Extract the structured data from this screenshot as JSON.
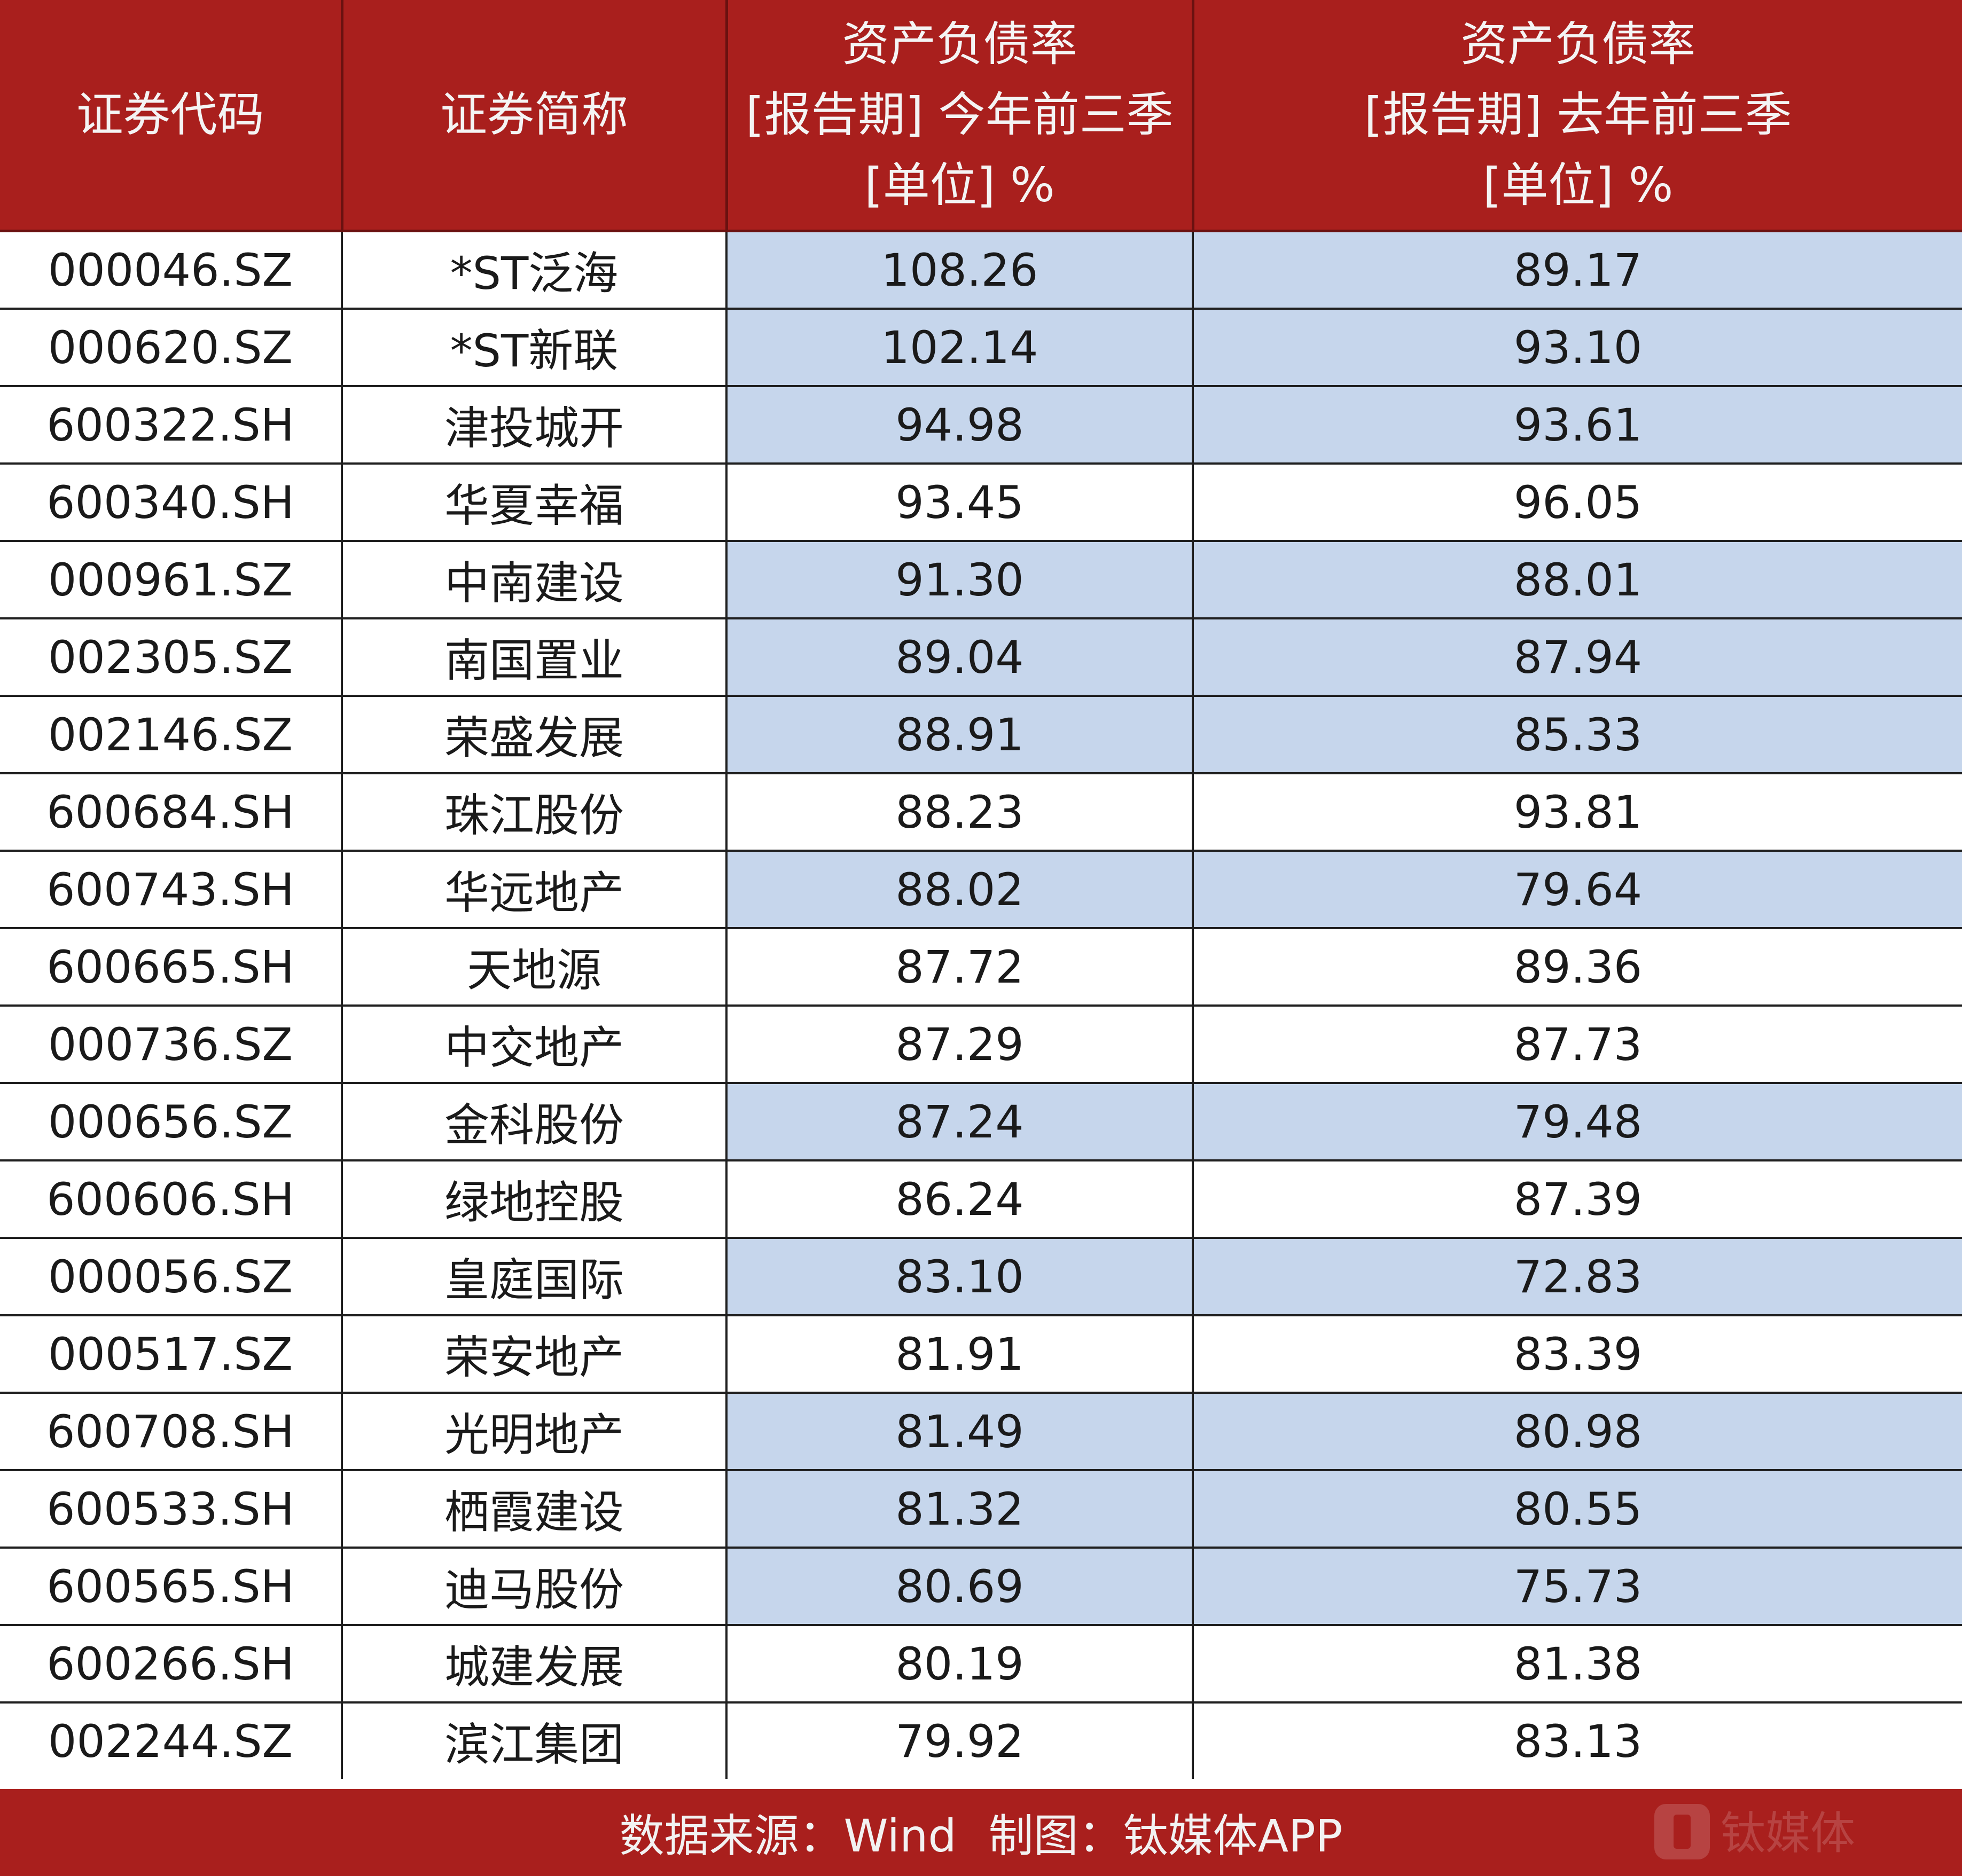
{
  "chart_data": {
    "type": "table",
    "columns": [
      [
        "证券代码"
      ],
      [
        "证券简称"
      ],
      [
        "资产负债率",
        "[报告期] 今年前三季",
        "[单位] %"
      ],
      [
        "资产负债率",
        "[报告期] 去年前三季",
        "[单位] %"
      ]
    ],
    "rows": [
      {
        "code": "000046.SZ",
        "name": "*ST泛海",
        "this_year": "108.26",
        "last_year": "89.17",
        "highlight": true
      },
      {
        "code": "000620.SZ",
        "name": "*ST新联",
        "this_year": "102.14",
        "last_year": "93.10",
        "highlight": true
      },
      {
        "code": "600322.SH",
        "name": "津投城开",
        "this_year": "94.98",
        "last_year": "93.61",
        "highlight": true
      },
      {
        "code": "600340.SH",
        "name": "华夏幸福",
        "this_year": "93.45",
        "last_year": "96.05",
        "highlight": false
      },
      {
        "code": "000961.SZ",
        "name": "中南建设",
        "this_year": "91.30",
        "last_year": "88.01",
        "highlight": true
      },
      {
        "code": "002305.SZ",
        "name": "南国置业",
        "this_year": "89.04",
        "last_year": "87.94",
        "highlight": true
      },
      {
        "code": "002146.SZ",
        "name": "荣盛发展",
        "this_year": "88.91",
        "last_year": "85.33",
        "highlight": true
      },
      {
        "code": "600684.SH",
        "name": "珠江股份",
        "this_year": "88.23",
        "last_year": "93.81",
        "highlight": false
      },
      {
        "code": "600743.SH",
        "name": "华远地产",
        "this_year": "88.02",
        "last_year": "79.64",
        "highlight": true
      },
      {
        "code": "600665.SH",
        "name": "天地源",
        "this_year": "87.72",
        "last_year": "89.36",
        "highlight": false
      },
      {
        "code": "000736.SZ",
        "name": "中交地产",
        "this_year": "87.29",
        "last_year": "87.73",
        "highlight": false
      },
      {
        "code": "000656.SZ",
        "name": "金科股份",
        "this_year": "87.24",
        "last_year": "79.48",
        "highlight": true
      },
      {
        "code": "600606.SH",
        "name": "绿地控股",
        "this_year": "86.24",
        "last_year": "87.39",
        "highlight": false
      },
      {
        "code": "000056.SZ",
        "name": "皇庭国际",
        "this_year": "83.10",
        "last_year": "72.83",
        "highlight": true
      },
      {
        "code": "000517.SZ",
        "name": "荣安地产",
        "this_year": "81.91",
        "last_year": "83.39",
        "highlight": false
      },
      {
        "code": "600708.SH",
        "name": "光明地产",
        "this_year": "81.49",
        "last_year": "80.98",
        "highlight": true
      },
      {
        "code": "600533.SH",
        "name": "栖霞建设",
        "this_year": "81.32",
        "last_year": "80.55",
        "highlight": true
      },
      {
        "code": "600565.SH",
        "name": "迪马股份",
        "this_year": "80.69",
        "last_year": "75.73",
        "highlight": true
      },
      {
        "code": "600266.SH",
        "name": "城建发展",
        "this_year": "80.19",
        "last_year": "81.38",
        "highlight": false
      },
      {
        "code": "002244.SZ",
        "name": "滨江集团",
        "this_year": "79.92",
        "last_year": "83.13",
        "highlight": false
      }
    ]
  },
  "footer": {
    "source": "数据来源：Wind",
    "maker": "制图：钛媒体APP",
    "watermark": "钛媒体"
  },
  "colors": {
    "header_bg": "#a91f1d",
    "header_text": "#f4f4f4",
    "highlight_bg": "#c6d6ec",
    "footer_bg": "#a91f1d"
  },
  "icons": {
    "watermark": "tmtpost-logo-icon"
  }
}
